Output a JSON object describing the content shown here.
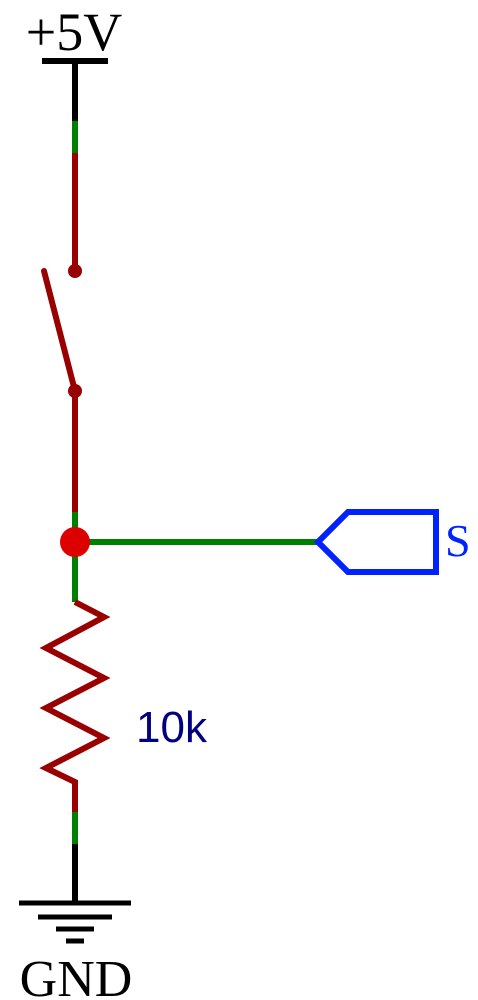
{
  "schematic": {
    "supply_label": "+5V",
    "resistor_value": "10k",
    "port_label": "S",
    "ground_label": "GND",
    "colors": {
      "wire_black": "#000000",
      "wire_green": "#008000",
      "component_red": "#990000",
      "junction_red": "#dd0000",
      "port_blue": "#0022ff",
      "value_navy": "#000080"
    }
  }
}
